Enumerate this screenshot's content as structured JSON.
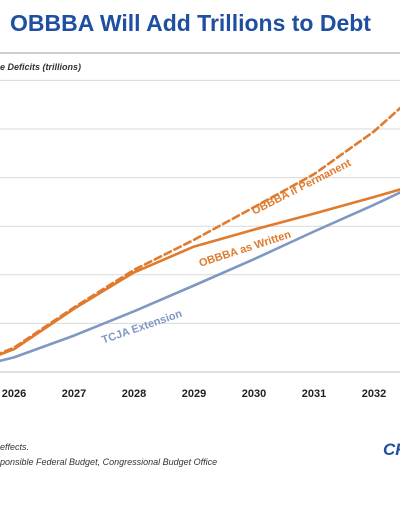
{
  "header": {
    "title": "OBBBA Will Add Trillions to Debt",
    "ylabel": "e Deficits (trillions)"
  },
  "footer": {
    "note1": "effects.",
    "note2": "ponsible Federal Budget, Congressional Budget Office",
    "logo": "CR"
  },
  "colors": {
    "title": "#1f4fa0",
    "obbba": "#e07b2e",
    "tcja": "#7f97c3",
    "grid": "#d9d9d9"
  },
  "chart_data": {
    "type": "line",
    "ylabel": "e Deficits (trillions)",
    "x_tick_labels": [
      "2026",
      "2027",
      "2028",
      "2029",
      "2030",
      "2031",
      "2032"
    ],
    "grid": true,
    "series": [
      {
        "name": "OBBBA if Permanent",
        "style": "dashed",
        "color": "#e07b2e",
        "points": [
          [
            2025.0,
            0.0
          ],
          [
            2026.0,
            0.5
          ],
          [
            2027.0,
            1.33
          ],
          [
            2028.0,
            2.1
          ],
          [
            2029.0,
            2.72
          ],
          [
            2030.0,
            3.39
          ],
          [
            2031.0,
            4.07
          ],
          [
            2032.0,
            4.95
          ],
          [
            2032.5,
            5.5
          ]
        ]
      },
      {
        "name": "OBBBA as Written",
        "style": "solid",
        "color": "#e07b2e",
        "points": [
          [
            2025.0,
            0.0
          ],
          [
            2026.0,
            0.47
          ],
          [
            2027.0,
            1.3
          ],
          [
            2028.0,
            2.05
          ],
          [
            2029.0,
            2.58
          ],
          [
            2030.0,
            2.93
          ],
          [
            2031.0,
            3.26
          ],
          [
            2032.0,
            3.6
          ],
          [
            2032.5,
            3.78
          ]
        ]
      },
      {
        "name": "TCJA Extension",
        "style": "solid",
        "color": "#7f97c3",
        "points": [
          [
            2025.0,
            0.0
          ],
          [
            2026.0,
            0.3
          ],
          [
            2027.0,
            0.75
          ],
          [
            2028.0,
            1.25
          ],
          [
            2029.0,
            1.78
          ],
          [
            2030.0,
            2.32
          ],
          [
            2031.0,
            2.89
          ],
          [
            2032.0,
            3.44
          ],
          [
            2032.5,
            3.73
          ]
        ]
      }
    ],
    "annotations": [
      "OBBBA if Permanent",
      "OBBBA as Written",
      "TCJA Extension"
    ]
  }
}
